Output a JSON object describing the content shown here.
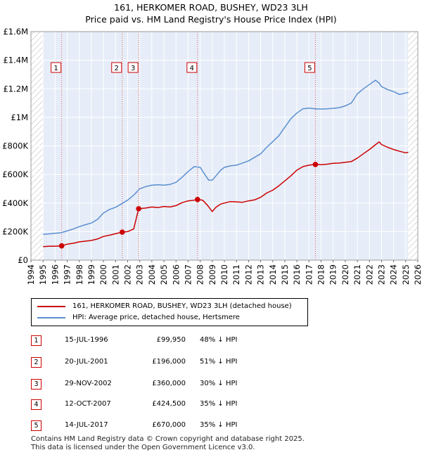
{
  "title": "161, HERKOMER ROAD, BUSHEY, WD23 3LH",
  "subtitle": "Price paid vs. HM Land Registry's House Price Index (HPI)",
  "colors": {
    "property": "#cc0000",
    "hpi": "#5b8fd0",
    "band": "#e6edf8",
    "hatch": "#cccccc"
  },
  "chart_data": {
    "type": "line",
    "xlim": [
      1994,
      2026
    ],
    "ylim": [
      0,
      1600000
    ],
    "x_ticks": [
      1994,
      1995,
      1996,
      1997,
      1998,
      1999,
      2000,
      2001,
      2002,
      2003,
      2004,
      2005,
      2006,
      2007,
      2008,
      2009,
      2010,
      2011,
      2012,
      2013,
      2014,
      2015,
      2016,
      2017,
      2018,
      2019,
      2020,
      2021,
      2022,
      2023,
      2024,
      2025,
      2026
    ],
    "y_ticks": [
      {
        "value": 0,
        "label": "£0"
      },
      {
        "value": 200000,
        "label": "£200K"
      },
      {
        "value": 400000,
        "label": "£400K"
      },
      {
        "value": 600000,
        "label": "£600K"
      },
      {
        "value": 800000,
        "label": "£800K"
      },
      {
        "value": 1000000,
        "label": "£1M"
      },
      {
        "value": 1200000,
        "label": "£1.2M"
      },
      {
        "value": 1400000,
        "label": "£1.4M"
      },
      {
        "value": 1600000,
        "label": "£1.6M"
      }
    ],
    "grid": true,
    "data_range": [
      1995.0,
      2025.2
    ],
    "series": [
      {
        "name": "161, HERKOMER ROAD, BUSHEY, WD23 3LH (detached house)",
        "color": "#cc0000",
        "x": [
          1995.0,
          1995.5,
          1996.0,
          1996.54,
          1997.0,
          1997.5,
          1998.0,
          1998.5,
          1999.0,
          1999.5,
          2000.0,
          2000.5,
          2001.0,
          2001.55,
          2002.0,
          2002.5,
          2002.91,
          2003.5,
          2004.0,
          2004.5,
          2005.0,
          2005.5,
          2006.0,
          2006.5,
          2007.0,
          2007.5,
          2007.78,
          2008.2,
          2008.6,
          2009.0,
          2009.3,
          2009.7,
          2010.0,
          2010.5,
          2011.0,
          2011.5,
          2012.0,
          2012.5,
          2013.0,
          2013.5,
          2014.0,
          2014.5,
          2015.0,
          2015.5,
          2016.0,
          2016.5,
          2017.0,
          2017.53,
          2018.0,
          2018.5,
          2019.0,
          2019.5,
          2020.0,
          2020.5,
          2021.0,
          2021.5,
          2022.0,
          2022.5,
          2022.8,
          2023.0,
          2023.5,
          2024.0,
          2024.5,
          2025.0,
          2025.2
        ],
        "y": [
          95000,
          97000,
          98000,
          99950,
          112000,
          118000,
          128000,
          133000,
          138000,
          148000,
          166000,
          175000,
          185000,
          196000,
          200000,
          218000,
          360000,
          365000,
          372000,
          368000,
          376000,
          372000,
          382000,
          402000,
          415000,
          420000,
          424500,
          420000,
          385000,
          340000,
          370000,
          393000,
          400000,
          410000,
          408000,
          405000,
          415000,
          422000,
          440000,
          470000,
          490000,
          520000,
          555000,
          590000,
          630000,
          655000,
          665000,
          670000,
          668000,
          672000,
          678000,
          680000,
          685000,
          690000,
          715000,
          745000,
          775000,
          808000,
          828000,
          810000,
          790000,
          775000,
          762000,
          752000,
          755000
        ]
      },
      {
        "name": "HPI: Average price, detached house, Hertsmere",
        "color": "#5b8fd0",
        "x": [
          1995.0,
          1995.5,
          1996.0,
          1996.5,
          1997.0,
          1997.5,
          1998.0,
          1998.5,
          1999.0,
          1999.5,
          2000.0,
          2000.5,
          2001.0,
          2001.5,
          2002.0,
          2002.5,
          2003.0,
          2003.5,
          2004.0,
          2004.5,
          2005.0,
          2005.5,
          2006.0,
          2006.5,
          2007.0,
          2007.5,
          2008.0,
          2008.3,
          2008.7,
          2009.0,
          2009.3,
          2009.7,
          2010.0,
          2010.5,
          2011.0,
          2011.5,
          2012.0,
          2012.5,
          2013.0,
          2013.5,
          2014.0,
          2014.5,
          2015.0,
          2015.5,
          2016.0,
          2016.5,
          2017.0,
          2017.5,
          2018.0,
          2018.5,
          2019.0,
          2019.5,
          2020.0,
          2020.5,
          2021.0,
          2021.5,
          2022.0,
          2022.5,
          2022.8,
          2023.0,
          2023.5,
          2024.0,
          2024.5,
          2025.0,
          2025.2
        ],
        "y": [
          180000,
          184000,
          188000,
          192000,
          205000,
          218000,
          235000,
          248000,
          260000,
          285000,
          330000,
          355000,
          370000,
          395000,
          420000,
          455000,
          500000,
          515000,
          525000,
          528000,
          525000,
          530000,
          545000,
          580000,
          620000,
          655000,
          650000,
          610000,
          560000,
          560000,
          590000,
          630000,
          650000,
          660000,
          665000,
          680000,
          695000,
          720000,
          745000,
          790000,
          830000,
          870000,
          930000,
          990000,
          1030000,
          1060000,
          1065000,
          1060000,
          1058000,
          1060000,
          1063000,
          1068000,
          1080000,
          1100000,
          1165000,
          1200000,
          1230000,
          1260000,
          1240000,
          1215000,
          1195000,
          1180000,
          1160000,
          1170000,
          1175000
        ]
      }
    ],
    "markers": [
      {
        "label": "1",
        "x": 1996.54,
        "y": 99950
      },
      {
        "label": "2",
        "x": 2001.55,
        "y": 196000
      },
      {
        "label": "3",
        "x": 2002.91,
        "y": 360000
      },
      {
        "label": "4",
        "x": 2007.78,
        "y": 424500
      },
      {
        "label": "5",
        "x": 2017.53,
        "y": 670000
      }
    ]
  },
  "legend": {
    "items": [
      {
        "label": "161, HERKOMER ROAD, BUSHEY, WD23 3LH (detached house)",
        "color": "#cc0000"
      },
      {
        "label": "HPI: Average price, detached house, Hertsmere",
        "color": "#5b8fd0"
      }
    ]
  },
  "transactions": [
    {
      "num": "1",
      "date": "15-JUL-1996",
      "price": "£99,950",
      "hpi": "48% ↓ HPI"
    },
    {
      "num": "2",
      "date": "20-JUL-2001",
      "price": "£196,000",
      "hpi": "51% ↓ HPI"
    },
    {
      "num": "3",
      "date": "29-NOV-2002",
      "price": "£360,000",
      "hpi": "30% ↓ HPI"
    },
    {
      "num": "4",
      "date": "12-OCT-2007",
      "price": "£424,500",
      "hpi": "35% ↓ HPI"
    },
    {
      "num": "5",
      "date": "14-JUL-2017",
      "price": "£670,000",
      "hpi": "35% ↓ HPI"
    }
  ],
  "footer": {
    "line1": "Contains HM Land Registry data © Crown copyright and database right 2025.",
    "line2": "This data is licensed under the Open Government Licence v3.0."
  }
}
